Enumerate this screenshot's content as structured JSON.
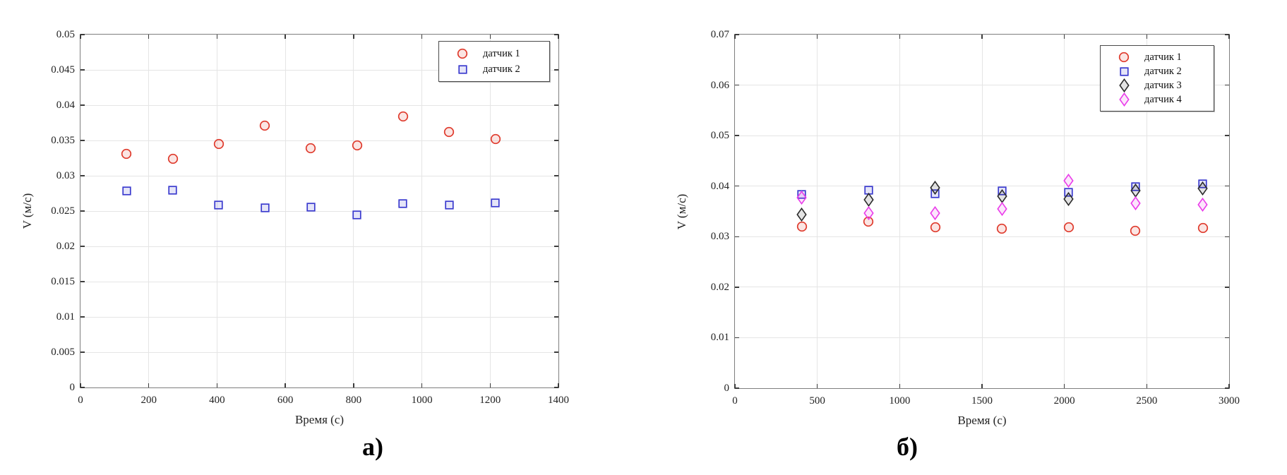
{
  "figure": {
    "caption_a": "а)",
    "caption_b": "б)"
  },
  "chart_data": [
    {
      "type": "scatter",
      "panel": "a",
      "title": "",
      "xlabel": "Время (с)",
      "ylabel": "V (м/с)",
      "xlim": [
        0,
        1400
      ],
      "ylim": [
        0,
        0.05
      ],
      "grid": true,
      "legend_position": "top-right-inside",
      "xticks": [
        0,
        200,
        400,
        600,
        800,
        1000,
        1200,
        1400
      ],
      "xtick_labels": [
        "0",
        "200",
        "400",
        "600",
        "800",
        "1000",
        "1200",
        "1400"
      ],
      "yticks": [
        0,
        0.005,
        0.01,
        0.015,
        0.02,
        0.025,
        0.03,
        0.035,
        0.04,
        0.045,
        0.05
      ],
      "ytick_labels": [
        "0",
        "0.005",
        "0.01",
        "0.015",
        "0.02",
        "0.025",
        "0.03",
        "0.035",
        "0.04",
        "0.045",
        "0.05"
      ],
      "x": [
        135,
        270,
        405,
        540,
        675,
        810,
        945,
        1080,
        1215
      ],
      "series": [
        {
          "name": "датчик 1",
          "marker": "circle",
          "color": "#df3a2c",
          "values": [
            0.0331,
            0.0324,
            0.0345,
            0.0371,
            0.0339,
            0.0343,
            0.0384,
            0.0362,
            0.0352
          ]
        },
        {
          "name": "датчик 2",
          "marker": "square",
          "color": "#3a3ace",
          "values": [
            0.0279,
            0.028,
            0.0259,
            0.0255,
            0.0256,
            0.0245,
            0.0261,
            0.0259,
            0.0262
          ]
        }
      ]
    },
    {
      "type": "scatter",
      "panel": "b",
      "title": "",
      "xlabel": "Время (с)",
      "ylabel": "V (м/с)",
      "xlim": [
        0,
        3000
      ],
      "ylim": [
        0,
        0.07
      ],
      "grid": true,
      "legend_position": "top-right-inside",
      "xticks": [
        0,
        500,
        1000,
        1500,
        2000,
        2500,
        3000
      ],
      "xtick_labels": [
        "0",
        "500",
        "1000",
        "1500",
        "2000",
        "2500",
        "3000"
      ],
      "yticks": [
        0,
        0.01,
        0.02,
        0.03,
        0.04,
        0.05,
        0.06,
        0.07
      ],
      "ytick_labels": [
        "0",
        "0.01",
        "0.02",
        "0.03",
        "0.04",
        "0.05",
        "0.06",
        "0.07"
      ],
      "x": [
        405,
        810,
        1215,
        1620,
        2025,
        2430,
        2840
      ],
      "series": [
        {
          "name": "датчик 1",
          "marker": "circle",
          "color": "#df3a2c",
          "values": [
            0.032,
            0.033,
            0.0318,
            0.0316,
            0.0318,
            0.0312,
            0.0317
          ]
        },
        {
          "name": "датчик 2",
          "marker": "square",
          "color": "#3a3ace",
          "values": [
            0.0384,
            0.0392,
            0.0385,
            0.039,
            0.0388,
            0.0399,
            0.0404
          ]
        },
        {
          "name": "датчик 3",
          "marker": "diamond",
          "color": "#2b2b2b",
          "values": [
            0.0344,
            0.0373,
            0.0397,
            0.038,
            0.0375,
            0.0391,
            0.0395
          ]
        },
        {
          "name": "датчик 4",
          "marker": "diamond",
          "color": "#ea3bea",
          "values": [
            0.0377,
            0.0347,
            0.0347,
            0.0355,
            0.0411,
            0.0366,
            0.0363
          ]
        }
      ]
    }
  ]
}
